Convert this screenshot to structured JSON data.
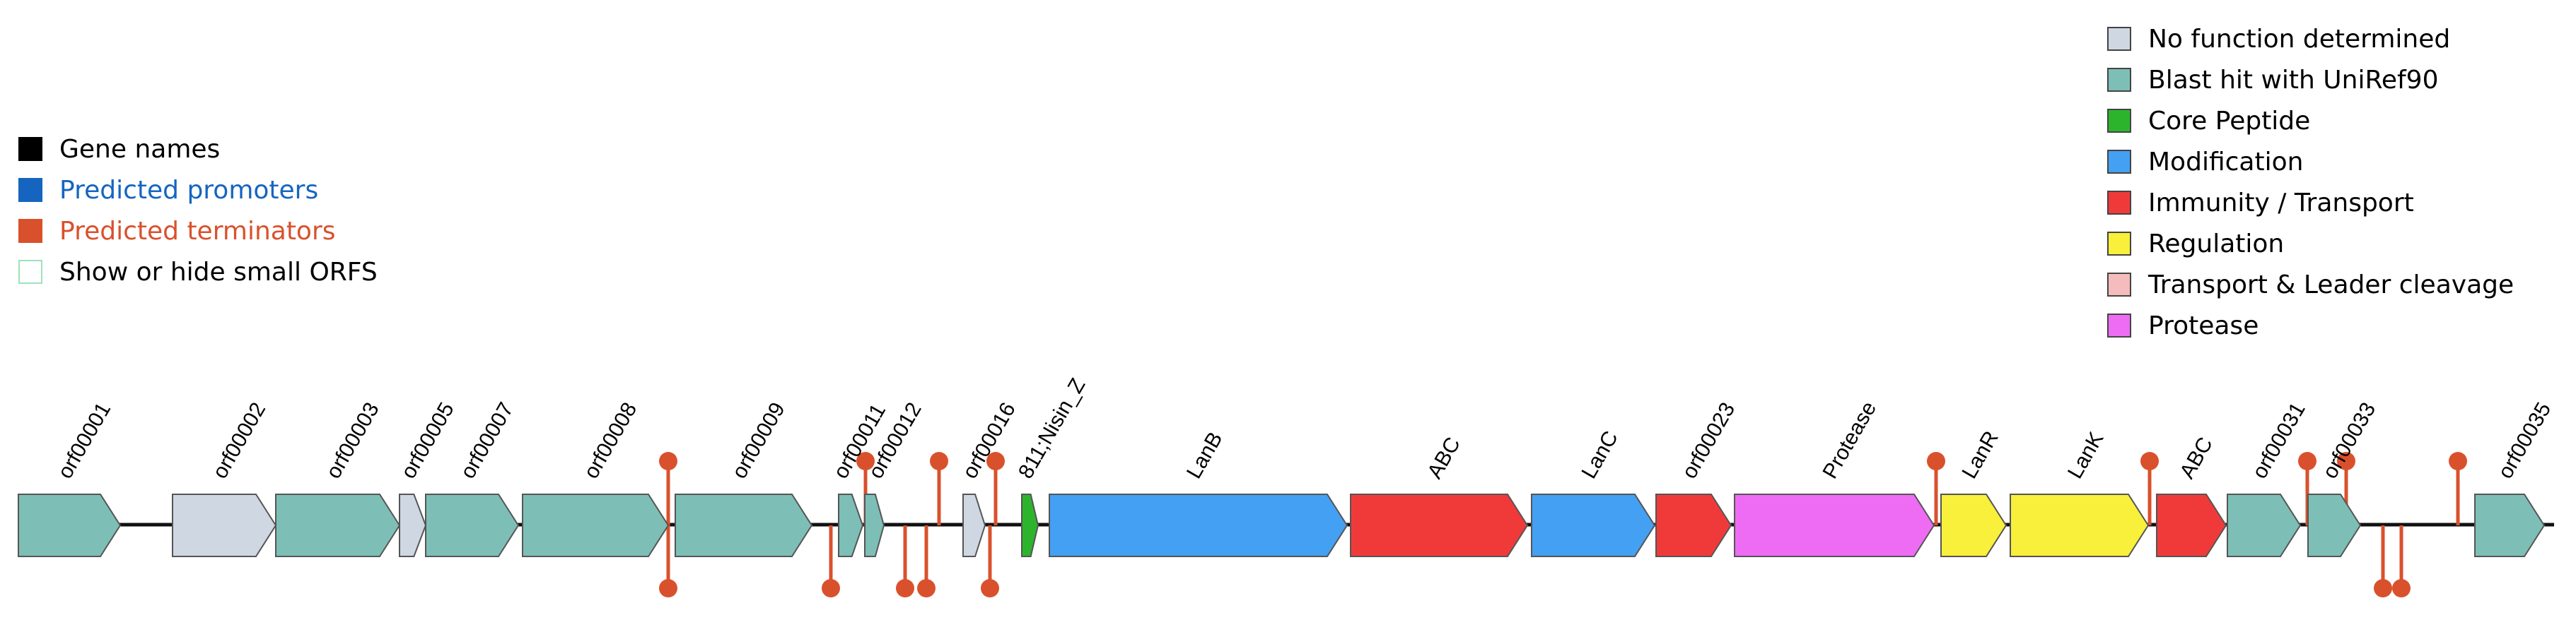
{
  "left_legend": {
    "items": [
      {
        "label": "Gene names",
        "color": "#000000"
      },
      {
        "label": "Predicted promoters",
        "color": "#1565c0",
        "text_color": "#1565c0"
      },
      {
        "label": "Predicted terminators",
        "color": "#d9512c",
        "text_color": "#d9512c"
      },
      {
        "label": "Show or hide small ORFS",
        "color": "#ffffff",
        "border": "#9be3b9"
      }
    ]
  },
  "right_legend": {
    "items": [
      {
        "label": "No function determined",
        "color": "#cfd7e3"
      },
      {
        "label": "Blast hit with UniRef90",
        "color": "#7dbfb6"
      },
      {
        "label": "Core Peptide",
        "color": "#2cb52c"
      },
      {
        "label": "Modification",
        "color": "#44a0f2"
      },
      {
        "label": "Immunity / Transport",
        "color": "#f03a3a"
      },
      {
        "label": "Regulation",
        "color": "#f8f03a"
      },
      {
        "label": "Transport & Leader cleavage",
        "color": "#f4bcbc"
      },
      {
        "label": "Protease",
        "color": "#ee6cf4"
      }
    ]
  },
  "colors": {
    "backbone": "#111111",
    "terminator": "#d9512c",
    "gene_stroke": "#555555"
  },
  "genes": [
    {
      "name": "orf00001",
      "category": "Blast hit with UniRef90",
      "color": "#7dbfb6"
    },
    {
      "name": "orf00002",
      "category": "No function determined",
      "color": "#cfd7e3"
    },
    {
      "name": "orf00003",
      "category": "Blast hit with UniRef90",
      "color": "#7dbfb6"
    },
    {
      "name": "orf00005",
      "category": "No function determined",
      "color": "#cfd7e3"
    },
    {
      "name": "orf00007",
      "category": "Blast hit with UniRef90",
      "color": "#7dbfb6"
    },
    {
      "name": "orf00008",
      "category": "Blast hit with UniRef90",
      "color": "#7dbfb6"
    },
    {
      "name": "orf00009",
      "category": "Blast hit with UniRef90",
      "color": "#7dbfb6"
    },
    {
      "name": "orf00011",
      "category": "Blast hit with UniRef90",
      "color": "#7dbfb6"
    },
    {
      "name": "orf00012",
      "category": "Blast hit with UniRef90",
      "color": "#7dbfb6"
    },
    {
      "name": "orf00016",
      "category": "No function determined",
      "color": "#cfd7e3"
    },
    {
      "name": "811;Nisin_Z",
      "category": "Core Peptide",
      "color": "#2cb52c"
    },
    {
      "name": "LanB",
      "category": "Modification",
      "color": "#44a0f2"
    },
    {
      "name": "ABC",
      "category": "Immunity / Transport",
      "color": "#f03a3a"
    },
    {
      "name": "LanC",
      "category": "Modification",
      "color": "#44a0f2"
    },
    {
      "name": "orf00023",
      "category": "Immunity / Transport",
      "color": "#f03a3a"
    },
    {
      "name": "Protease",
      "category": "Protease",
      "color": "#ee6cf4"
    },
    {
      "name": "LanR",
      "category": "Regulation",
      "color": "#f8f03a"
    },
    {
      "name": "LanK",
      "category": "Regulation",
      "color": "#f8f03a"
    },
    {
      "name": "ABC",
      "category": "Immunity / Transport",
      "color": "#f03a3a"
    },
    {
      "name": "orf00031",
      "category": "Blast hit with UniRef90",
      "color": "#7dbfb6"
    },
    {
      "name": "orf00033",
      "category": "Blast hit with UniRef90",
      "color": "#7dbfb6"
    },
    {
      "name": "orf00035",
      "category": "Blast hit with UniRef90",
      "color": "#7dbfb6"
    }
  ]
}
